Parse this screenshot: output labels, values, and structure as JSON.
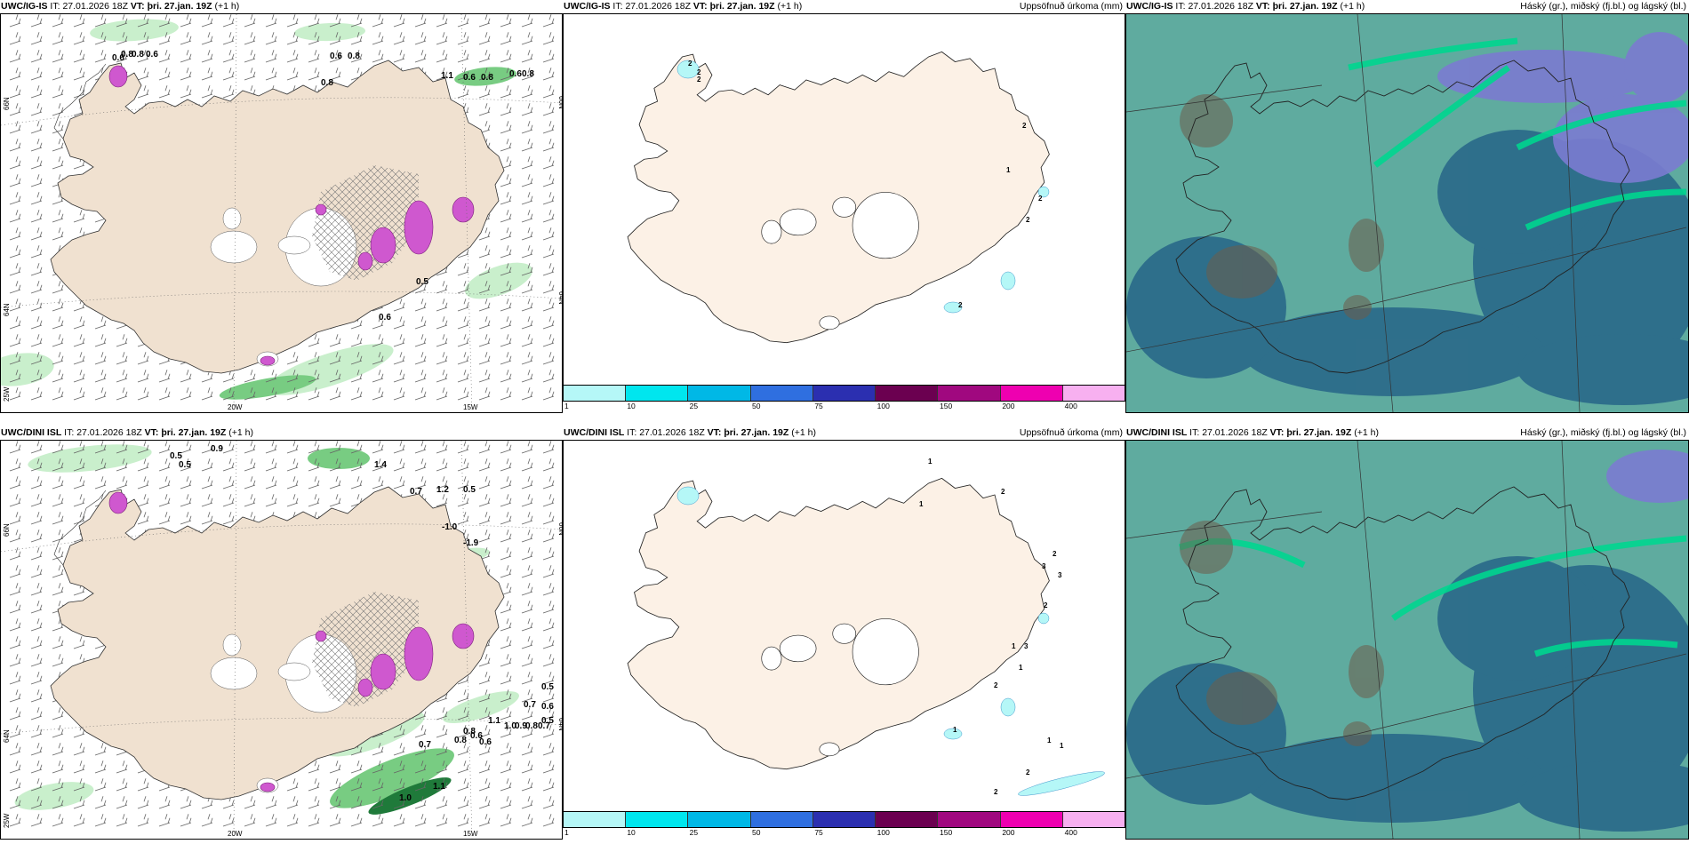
{
  "panels": {
    "top_left": {
      "model": "UWC/IG-IS",
      "it_label": "IT:",
      "it_value": "27.01.2026 18Z",
      "vt_label": "VT:",
      "vt_value": "þri. 27.jan. 19Z",
      "lead": "(+1 h)",
      "title_right": ""
    },
    "top_mid": {
      "model": "UWC/IG-IS",
      "it_label": "IT:",
      "it_value": "27.01.2026 18Z",
      "vt_label": "VT:",
      "vt_value": "þri. 27.jan. 19Z",
      "lead": "(+1 h)",
      "title_right": "Uppsöfnuð úrkoma (mm)"
    },
    "top_right": {
      "model": "UWC/IG-IS",
      "it_label": "IT:",
      "it_value": "27.01.2026 18Z",
      "vt_label": "VT:",
      "vt_value": "þri. 27.jan. 19Z",
      "lead": "(+1 h)",
      "title_right": "Háský (gr.), miðský (fj.bl.) og lágský (bl.)"
    },
    "bottom_left": {
      "model": "UWC/DINI ISL",
      "it_label": "IT:",
      "it_value": "27.01.2026 18Z",
      "vt_label": "VT:",
      "vt_value": "þri. 27.jan. 19Z",
      "lead": "(+1 h)",
      "title_right": ""
    },
    "bottom_mid": {
      "model": "UWC/DINI ISL",
      "it_label": "IT:",
      "it_value": "27.01.2026 18Z",
      "vt_label": "VT:",
      "vt_value": "þri. 27.jan. 19Z",
      "lead": "(+1 h)",
      "title_right": "Uppsöfnuð úrkoma (mm)"
    },
    "bottom_right": {
      "model": "UWC/DINI ISL",
      "it_label": "IT:",
      "it_value": "27.01.2026 18Z",
      "vt_label": "VT:",
      "vt_value": "þri. 27.jan. 19Z",
      "lead": "(+1 h)",
      "title_right": "Háský (gr.), miðský (fj.bl.) og lágský (bl.)"
    }
  },
  "axes": {
    "lon_20": "20W",
    "lon_15": "15W",
    "lat_66": "66N",
    "lat_64": "64N",
    "lon_25": "25W",
    "lat_66_r": "66N",
    "lat_64_r": "64N"
  },
  "colorbar": {
    "ticks": [
      "1",
      "10",
      "25",
      "50",
      "75",
      "100",
      "150",
      "200",
      "400"
    ],
    "colors": [
      "#b5f7f7",
      "#00e6ee",
      "#00b8e6",
      "#2f6fe0",
      "#2b2fb0",
      "#6b0050",
      "#a0087f",
      "#ee00b0",
      "#f7b0f0"
    ]
  },
  "precip_top": [
    "2",
    "2",
    "2",
    "2",
    "1",
    "2",
    "2",
    "2"
  ],
  "precip_bottom": [
    "1",
    "2",
    "1",
    "2",
    "3",
    "3",
    "2",
    "1",
    "3",
    "1",
    "2",
    "1",
    "1",
    "1",
    "2",
    "2"
  ],
  "wind_top": [
    "0.6",
    "0.8",
    "0.8",
    "0.6",
    "0.8",
    "0.6",
    "0.8",
    "1.1",
    "0.6",
    "0.8",
    "0.6",
    "0.8",
    "0.5",
    "0.6"
  ],
  "wind_bottom": [
    "0.5",
    "0.9",
    "0.5",
    "1.4",
    "0.7",
    "1.2",
    "0.5",
    "-1.0",
    "-1.9",
    "0.5",
    "0.7",
    "0.6",
    "1.1",
    "1.0",
    "0.9",
    "0.8",
    "0.7",
    "0.8",
    "0.6",
    "0.7",
    "0.8",
    "1.0",
    "1.1",
    "0.6",
    "0.5"
  ],
  "colors": {
    "land": "#f0e1d0",
    "land_light": "#fcf1e6",
    "sea": "#ffffff",
    "green_light": "#c9efcc",
    "green_mid": "#78cc82",
    "green_dark": "#1f7a3a",
    "magenta": "#cf58cf",
    "cloud_low": "#2c6c8a",
    "cloud_mid": "#6a8fc0",
    "cloud_high": "#7ed9a3",
    "cloud_base": "#5fab9f"
  }
}
